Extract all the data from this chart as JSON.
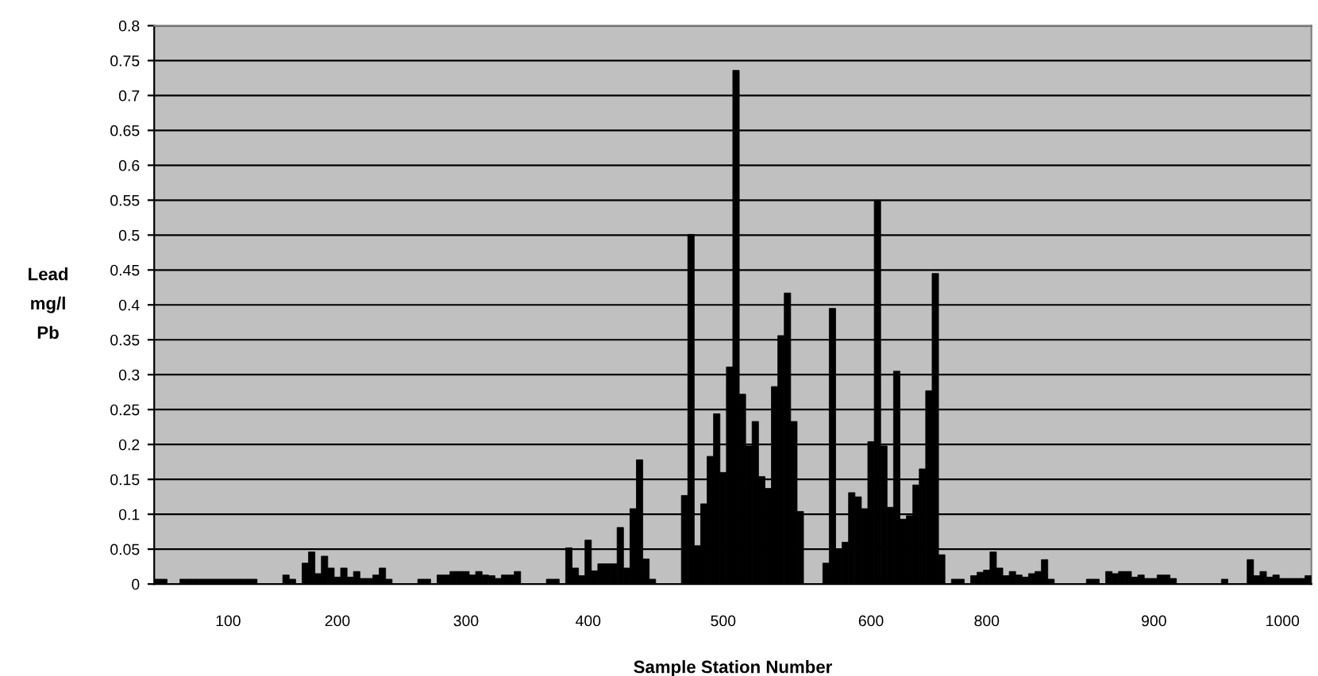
{
  "chart_data": {
    "type": "bar",
    "xlabel": "Sample Station Number",
    "ylabel": "Lead\nmg/l\nPb",
    "categories": [
      null,
      null,
      null,
      null,
      null,
      null,
      null,
      null,
      null,
      null,
      null,
      "100",
      null,
      null,
      null,
      null,
      null,
      null,
      null,
      null,
      null,
      null,
      null,
      null,
      null,
      null,
      null,
      null,
      "200",
      null,
      null,
      null,
      null,
      null,
      null,
      null,
      null,
      null,
      null,
      null,
      null,
      null,
      null,
      null,
      null,
      null,
      null,
      null,
      "300",
      null,
      null,
      null,
      null,
      null,
      null,
      null,
      null,
      null,
      null,
      null,
      null,
      null,
      null,
      null,
      null,
      null,
      null,
      "400",
      null,
      null,
      null,
      null,
      null,
      null,
      null,
      null,
      null,
      null,
      null,
      null,
      null,
      null,
      null,
      null,
      null,
      null,
      null,
      null,
      "500",
      null,
      null,
      null,
      null,
      null,
      null,
      null,
      null,
      null,
      null,
      null,
      null,
      null,
      null,
      null,
      null,
      null,
      null,
      null,
      null,
      null,
      null,
      "600",
      null,
      null,
      null,
      null,
      null,
      null,
      null,
      null,
      null,
      null,
      null,
      null,
      null,
      null,
      null,
      null,
      null,
      "800",
      null,
      null,
      null,
      null,
      null,
      null,
      null,
      null,
      null,
      null,
      null,
      null,
      null,
      null,
      null,
      null,
      null,
      null,
      null,
      null,
      null,
      null,
      null,
      null,
      null,
      "900",
      null,
      null,
      null,
      null,
      null,
      null,
      null,
      null,
      null,
      null,
      null,
      null,
      null,
      null,
      null,
      null,
      null,
      null,
      null,
      "1000",
      null,
      null,
      null,
      null
    ],
    "values": [
      0.007,
      0.007,
      null,
      null,
      0.007,
      0.007,
      0.007,
      0.007,
      0.007,
      0.007,
      0.007,
      0.007,
      0.007,
      0.007,
      0.007,
      0.007,
      null,
      null,
      null,
      null,
      0.013,
      0.007,
      null,
      0.03,
      0.046,
      0.015,
      0.04,
      0.023,
      0.01,
      0.023,
      0.01,
      0.018,
      0.008,
      0.008,
      0.013,
      0.023,
      0.007,
      null,
      null,
      null,
      null,
      0.007,
      0.007,
      null,
      0.013,
      0.013,
      0.018,
      0.018,
      0.018,
      0.013,
      0.018,
      0.013,
      0.012,
      0.008,
      0.013,
      0.013,
      0.018,
      null,
      null,
      null,
      null,
      0.007,
      0.007,
      null,
      0.052,
      0.023,
      0.012,
      0.063,
      0.019,
      0.029,
      0.029,
      0.029,
      0.081,
      0.023,
      0.108,
      0.178,
      0.036,
      0.007,
      null,
      null,
      null,
      null,
      0.127,
      0.501,
      0.055,
      0.115,
      0.183,
      0.244,
      0.16,
      0.311,
      0.736,
      0.272,
      0.198,
      0.233,
      0.154,
      0.137,
      0.283,
      0.356,
      0.417,
      0.233,
      0.104,
      null,
      null,
      null,
      0.03,
      0.395,
      0.05,
      0.06,
      0.131,
      0.125,
      0.108,
      0.204,
      0.55,
      0.198,
      0.11,
      0.305,
      0.093,
      0.098,
      0.142,
      0.165,
      0.277,
      0.445,
      0.042,
      null,
      0.007,
      0.007,
      null,
      0.012,
      0.017,
      0.02,
      0.046,
      0.023,
      0.012,
      0.018,
      0.013,
      0.01,
      0.015,
      0.018,
      0.035,
      0.007,
      null,
      null,
      null,
      null,
      null,
      0.007,
      0.007,
      null,
      0.018,
      0.015,
      0.018,
      0.018,
      0.01,
      0.013,
      0.008,
      0.008,
      0.013,
      0.013,
      0.008,
      null,
      null,
      null,
      null,
      null,
      null,
      null,
      0.007,
      null,
      null,
      null,
      0.035,
      0.012,
      0.018,
      0.01,
      0.013,
      0.008,
      0.008,
      0.008,
      0.008,
      0.012
    ],
    "color": "#000000",
    "ylim": [
      0,
      0.8
    ],
    "yticks": [
      0,
      0.05,
      0.1,
      0.15,
      0.2,
      0.25,
      0.3,
      0.35,
      0.4,
      0.45,
      0.5,
      0.55,
      0.6,
      0.65,
      0.7,
      0.75,
      0.8
    ],
    "grid": "y"
  }
}
